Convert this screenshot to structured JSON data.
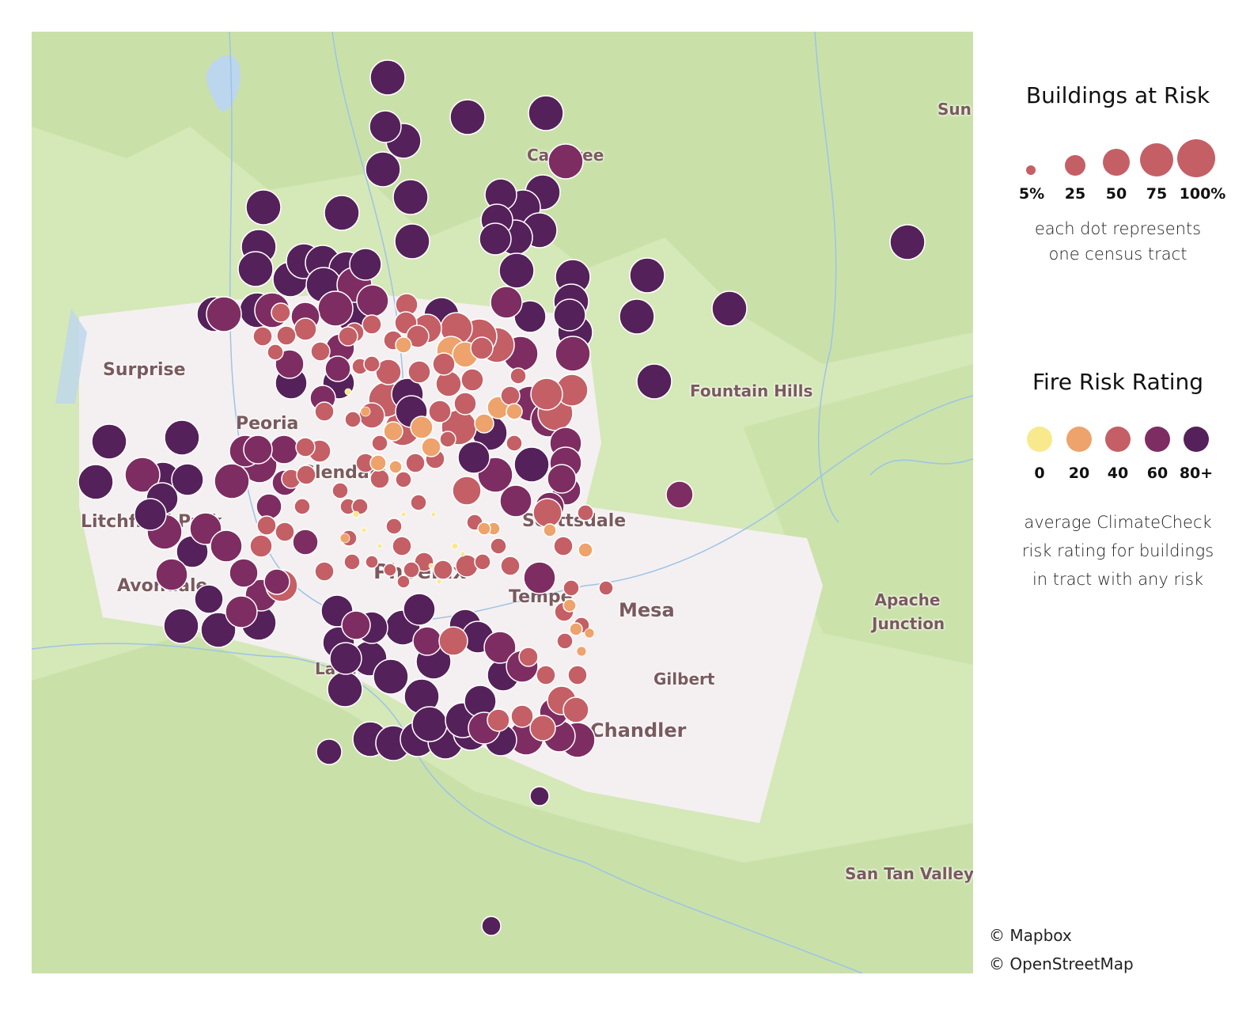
{
  "map": {
    "places": [
      {
        "name": "Surprise"
      },
      {
        "name": "Peoria"
      },
      {
        "name": "Glendale"
      },
      {
        "name": "Litchfield Park"
      },
      {
        "name": "Avondale"
      },
      {
        "name": "Phoenix"
      },
      {
        "name": "Tempe"
      },
      {
        "name": "Scottsdale"
      },
      {
        "name": "Mesa"
      },
      {
        "name": "Gilbert"
      },
      {
        "name": "Chandler"
      },
      {
        "name": "Laveen"
      },
      {
        "name": "Fountain Hills"
      },
      {
        "name": "Apache Junction"
      },
      {
        "name": "San Tan Valley"
      },
      {
        "name": "Carefree"
      },
      {
        "name": "Sun"
      }
    ],
    "colors": {
      "land": "#d5e8b8",
      "urban": "#f4f0f1",
      "forest": "#c6dfa5",
      "water": "#bcd6ee"
    }
  },
  "legend": {
    "size": {
      "title": "Buildings at Risk",
      "labels": [
        "5%",
        "25",
        "50",
        "75",
        "100%"
      ],
      "values_pct": [
        5,
        25,
        50,
        75,
        100
      ],
      "color": "#c45f66",
      "note_line1": "each dot represents",
      "note_line2": "one census tract"
    },
    "color": {
      "title": "Fire Risk Rating",
      "labels": [
        "0",
        "20",
        "40",
        "60",
        "80+"
      ],
      "colors": [
        "#f8ea8c",
        "#eda36b",
        "#c45f66",
        "#7e2d62",
        "#55215a"
      ],
      "note_line1": "average ClimateCheck",
      "note_line2": "risk rating for buildings",
      "note_line3": "in tract with any risk"
    }
  },
  "credits": {
    "mapbox": "© Mapbox",
    "osm": "© OpenStreetMap"
  }
}
